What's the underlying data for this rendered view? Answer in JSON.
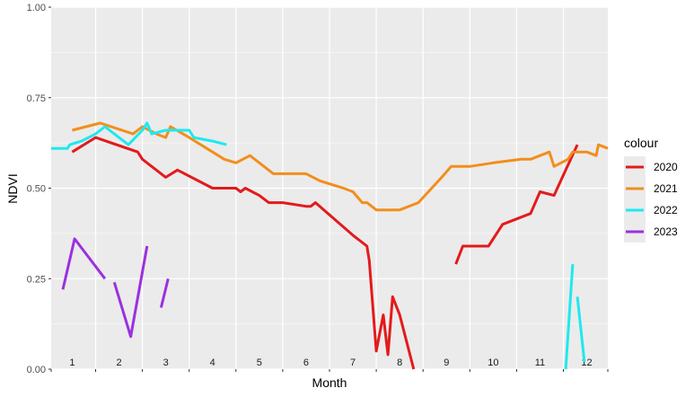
{
  "chart_data": {
    "type": "line",
    "xlabel": "Month",
    "ylabel": "NDVI",
    "ylim": [
      0,
      1
    ],
    "xlim": [
      0.55,
      12.45
    ],
    "yticks": [
      {
        "value": 0,
        "label": "0.00"
      },
      {
        "value": 0.25,
        "label": "0.25"
      },
      {
        "value": 0.5,
        "label": "0.50"
      },
      {
        "value": 0.75,
        "label": "0.75"
      },
      {
        "value": 1,
        "label": "1.00"
      }
    ],
    "month_labels": [
      {
        "value": 1,
        "label": "1"
      },
      {
        "value": 2,
        "label": "2"
      },
      {
        "value": 3,
        "label": "3"
      },
      {
        "value": 4,
        "label": "4"
      },
      {
        "value": 5,
        "label": "5"
      },
      {
        "value": 6,
        "label": "6"
      },
      {
        "value": 7,
        "label": "7"
      },
      {
        "value": 8,
        "label": "8"
      },
      {
        "value": 9,
        "label": "9"
      },
      {
        "value": 10,
        "label": "10"
      },
      {
        "value": 11,
        "label": "11"
      },
      {
        "value": 12,
        "label": "12"
      }
    ],
    "grid": true,
    "legend": {
      "title": "colour",
      "position": "right"
    },
    "series": [
      {
        "name": "2020",
        "color": "#e31a1c",
        "segments": [
          [
            [
              1.0,
              0.6
            ],
            [
              1.5,
              0.64
            ],
            [
              2.4,
              0.6
            ],
            [
              2.5,
              0.58
            ],
            [
              3.0,
              0.53
            ],
            [
              3.25,
              0.55
            ],
            [
              4.0,
              0.5
            ],
            [
              4.2,
              0.5
            ],
            [
              4.5,
              0.5
            ],
            [
              4.6,
              0.49
            ],
            [
              4.7,
              0.5
            ],
            [
              5.0,
              0.48
            ],
            [
              5.2,
              0.46
            ],
            [
              5.5,
              0.46
            ],
            [
              6.0,
              0.45
            ],
            [
              6.1,
              0.45
            ],
            [
              6.2,
              0.46
            ],
            [
              7.0,
              0.37
            ],
            [
              7.3,
              0.34
            ],
            [
              7.35,
              0.3
            ],
            [
              7.5,
              0.05
            ],
            [
              7.65,
              0.15
            ],
            [
              7.75,
              0.04
            ],
            [
              7.85,
              0.2
            ],
            [
              8.0,
              0.15
            ],
            [
              8.3,
              0.0
            ]
          ],
          [
            [
              9.2,
              0.29
            ],
            [
              9.35,
              0.34
            ],
            [
              9.9,
              0.34
            ],
            [
              10.2,
              0.4
            ],
            [
              10.8,
              0.43
            ],
            [
              11.0,
              0.49
            ],
            [
              11.3,
              0.48
            ],
            [
              11.55,
              0.55
            ],
            [
              11.8,
              0.62
            ]
          ]
        ]
      },
      {
        "name": "2021",
        "color": "#f28e1c",
        "segments": [
          [
            [
              1.0,
              0.66
            ],
            [
              1.6,
              0.68
            ],
            [
              2.3,
              0.65
            ],
            [
              2.5,
              0.67
            ],
            [
              2.8,
              0.65
            ],
            [
              3.0,
              0.64
            ],
            [
              3.1,
              0.67
            ],
            [
              3.5,
              0.64
            ],
            [
              4.0,
              0.6
            ],
            [
              4.25,
              0.58
            ],
            [
              4.5,
              0.57
            ],
            [
              4.8,
              0.59
            ],
            [
              5.3,
              0.54
            ],
            [
              5.6,
              0.54
            ],
            [
              6.0,
              0.54
            ],
            [
              6.3,
              0.52
            ],
            [
              6.8,
              0.5
            ],
            [
              7.0,
              0.49
            ],
            [
              7.2,
              0.46
            ],
            [
              7.3,
              0.46
            ],
            [
              7.5,
              0.44
            ],
            [
              7.8,
              0.44
            ],
            [
              8.0,
              0.44
            ],
            [
              8.4,
              0.46
            ],
            [
              8.9,
              0.53
            ],
            [
              9.1,
              0.56
            ],
            [
              9.5,
              0.56
            ],
            [
              10.0,
              0.57
            ],
            [
              10.6,
              0.58
            ],
            [
              10.8,
              0.58
            ],
            [
              11.2,
              0.6
            ],
            [
              11.3,
              0.56
            ],
            [
              11.6,
              0.58
            ],
            [
              11.7,
              0.6
            ],
            [
              12.0,
              0.6
            ],
            [
              12.2,
              0.59
            ],
            [
              12.25,
              0.62
            ],
            [
              12.45,
              0.61
            ]
          ]
        ]
      },
      {
        "name": "2022",
        "color": "#1de9f0",
        "segments": [
          [
            [
              0.55,
              0.61
            ],
            [
              0.9,
              0.61
            ],
            [
              0.95,
              0.62
            ],
            [
              1.2,
              0.63
            ],
            [
              1.5,
              0.65
            ],
            [
              1.7,
              0.67
            ],
            [
              2.0,
              0.64
            ],
            [
              2.2,
              0.62
            ],
            [
              2.5,
              0.66
            ],
            [
              2.6,
              0.68
            ],
            [
              2.7,
              0.65
            ],
            [
              3.0,
              0.66
            ],
            [
              3.5,
              0.66
            ],
            [
              3.6,
              0.64
            ],
            [
              4.0,
              0.63
            ],
            [
              4.3,
              0.62
            ]
          ],
          [
            [
              11.55,
              0.0
            ],
            [
              11.7,
              0.29
            ]
          ],
          [
            [
              11.8,
              0.2
            ],
            [
              11.95,
              0.02
            ]
          ]
        ]
      },
      {
        "name": "2023",
        "color": "#9b30e0",
        "segments": [
          [
            [
              0.8,
              0.22
            ],
            [
              1.05,
              0.36
            ],
            [
              1.7,
              0.25
            ]
          ],
          [
            [
              1.9,
              0.24
            ],
            [
              2.25,
              0.09
            ],
            [
              2.6,
              0.34
            ]
          ],
          [
            [
              2.9,
              0.17
            ],
            [
              3.05,
              0.25
            ]
          ]
        ]
      }
    ]
  }
}
